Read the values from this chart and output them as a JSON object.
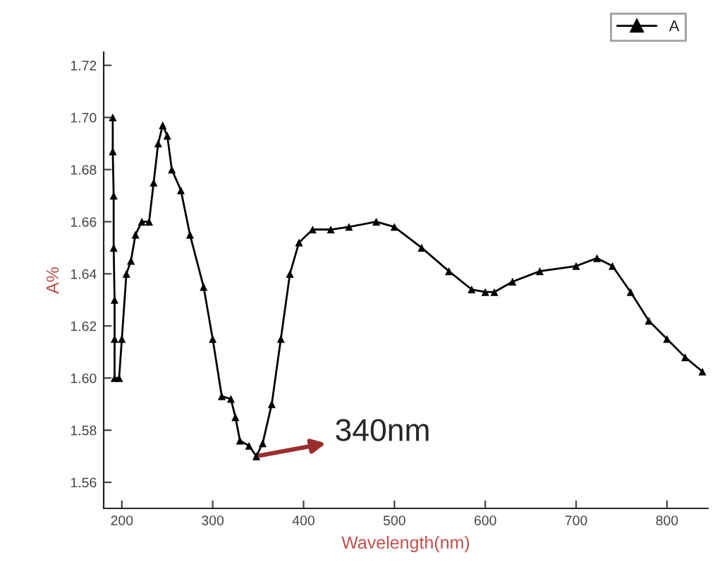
{
  "chart_data": {
    "type": "line",
    "xlabel": "Wavelength(nm)",
    "ylabel": "A%",
    "xlim": [
      180,
      845
    ],
    "ylim": [
      1.55,
      1.725
    ],
    "xticks": [
      200,
      300,
      400,
      500,
      600,
      700,
      800
    ],
    "yticks": [
      1.56,
      1.58,
      {
        "value": 1.6,
        "label": "1.60"
      },
      1.62,
      1.64,
      1.66,
      1.68,
      {
        "value": 1.7,
        "label": "1.70"
      },
      1.72
    ],
    "marker": "triangle",
    "line_style": "solid",
    "grid": false,
    "legend": "top right",
    "annotations": [
      {
        "text": "340nm",
        "x": 348,
        "y": 1.57
      }
    ],
    "series": [
      {
        "name": "A",
        "color": "#000000",
        "x": [
          190,
          190,
          191,
          191,
          192,
          192,
          192,
          197,
          200,
          205,
          210,
          215,
          222,
          230,
          235,
          240,
          245,
          250,
          255,
          265,
          275,
          290,
          300,
          310,
          320,
          325,
          330,
          340,
          348,
          355,
          365,
          375,
          385,
          395,
          410,
          430,
          450,
          480,
          500,
          530,
          560,
          585,
          600,
          610,
          630,
          660,
          700,
          723,
          740,
          760,
          780,
          800,
          820,
          839
        ],
        "values": [
          1.7,
          1.687,
          1.67,
          1.65,
          1.63,
          1.615,
          1.6,
          1.6,
          1.615,
          1.64,
          1.645,
          1.655,
          1.66,
          1.66,
          1.675,
          1.69,
          1.697,
          1.693,
          1.68,
          1.672,
          1.655,
          1.635,
          1.615,
          1.593,
          1.592,
          1.585,
          1.576,
          1.574,
          1.57,
          1.575,
          1.59,
          1.615,
          1.64,
          1.652,
          1.657,
          1.657,
          1.658,
          1.66,
          1.658,
          1.65,
          1.641,
          1.634,
          1.633,
          1.633,
          1.637,
          1.641,
          1.643,
          1.646,
          1.643,
          1.633,
          1.622,
          1.615,
          1.608,
          1.6025
        ]
      }
    ]
  }
}
